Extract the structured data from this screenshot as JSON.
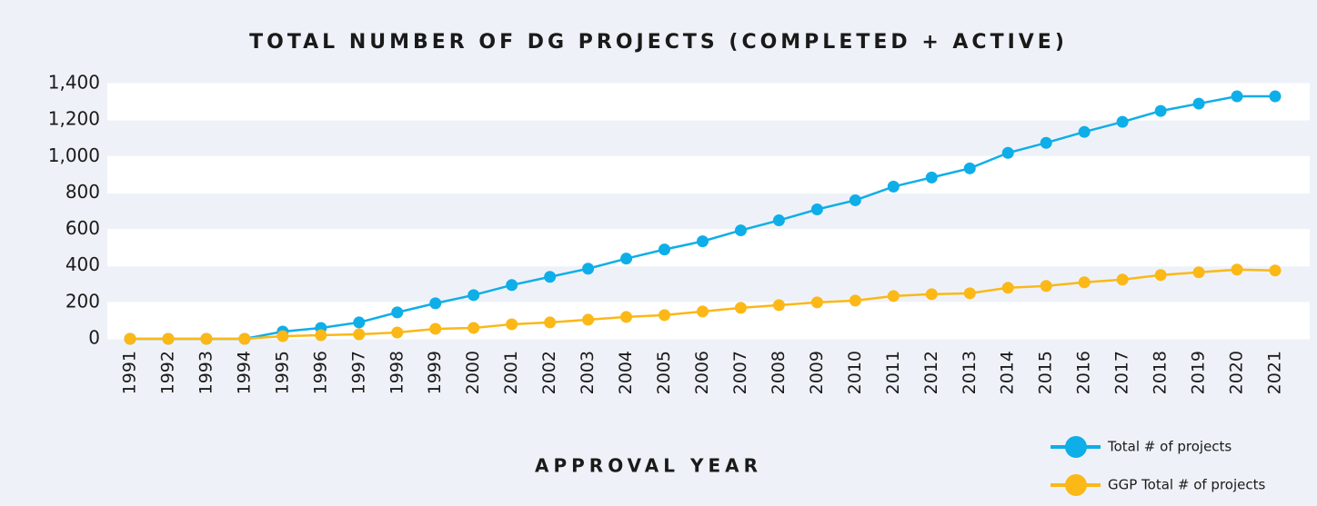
{
  "chart_data": {
    "type": "line",
    "title": "TOTAL NUMBER OF DG PROJECTS (COMPLETED + ACTIVE)",
    "x_label": "APPROVAL YEAR",
    "categories": [
      "1991",
      "1992",
      "1993",
      "1994",
      "1995",
      "1996",
      "1997",
      "1998",
      "1999",
      "2000",
      "2001",
      "2002",
      "2003",
      "2004",
      "2005",
      "2006",
      "2007",
      "2008",
      "2009",
      "2010",
      "2011",
      "2012",
      "2013",
      "2014",
      "2015",
      "2016",
      "2017",
      "2018",
      "2019",
      "2020",
      "2021"
    ],
    "series": [
      {
        "name": "Total # of projects",
        "color": "#0eaee8",
        "values": [
          0,
          0,
          0,
          0,
          40,
          60,
          90,
          145,
          195,
          240,
          295,
          340,
          385,
          440,
          490,
          535,
          595,
          650,
          710,
          760,
          835,
          885,
          935,
          1020,
          1075,
          1135,
          1190,
          1250,
          1290,
          1330,
          1330
        ]
      },
      {
        "name": "GGP Total # of projects",
        "color": "#fbb817",
        "values": [
          0,
          0,
          0,
          0,
          15,
          20,
          25,
          35,
          55,
          60,
          80,
          90,
          105,
          120,
          130,
          150,
          170,
          185,
          200,
          210,
          235,
          245,
          250,
          280,
          290,
          310,
          325,
          350,
          365,
          380,
          375
        ]
      }
    ],
    "ylim": [
      0,
      1400
    ],
    "yticks": [
      0,
      200,
      400,
      600,
      800,
      {
        "value": 1000,
        "label": "1,000"
      },
      {
        "value": 1200,
        "label": "1,200"
      },
      {
        "value": 1400,
        "label": "1,400"
      }
    ],
    "legend": "bottom-right"
  }
}
